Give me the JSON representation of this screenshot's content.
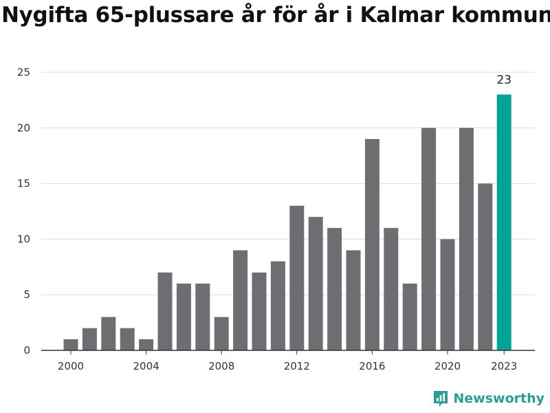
{
  "chart_data": {
    "type": "bar",
    "title": "Nygifta 65-plussare år för år i Kalmar kommun",
    "xlabel": "",
    "ylabel": "",
    "ylim": [
      0,
      25
    ],
    "yticks": [
      0,
      5,
      10,
      15,
      20,
      25
    ],
    "categories": [
      2000,
      2001,
      2002,
      2003,
      2004,
      2005,
      2006,
      2007,
      2008,
      2009,
      2010,
      2011,
      2012,
      2013,
      2014,
      2015,
      2016,
      2017,
      2018,
      2019,
      2020,
      2021,
      2022,
      2023
    ],
    "values": [
      1,
      2,
      3,
      2,
      1,
      7,
      6,
      6,
      3,
      9,
      7,
      8,
      13,
      12,
      11,
      9,
      19,
      11,
      6,
      20,
      10,
      20,
      15,
      23
    ],
    "xtick_labels": [
      "2000",
      "2004",
      "2008",
      "2012",
      "2016",
      "2020",
      "2023"
    ],
    "highlight": {
      "category": 2023,
      "label": "23"
    },
    "grid": true,
    "colors": {
      "bar": "#6e6d72",
      "highlight": "#00a398",
      "grid": "#dcdcdc",
      "axis": "#333333"
    }
  },
  "branding": {
    "name": "Newsworthy",
    "icon": "newsworthy-logo-icon"
  }
}
